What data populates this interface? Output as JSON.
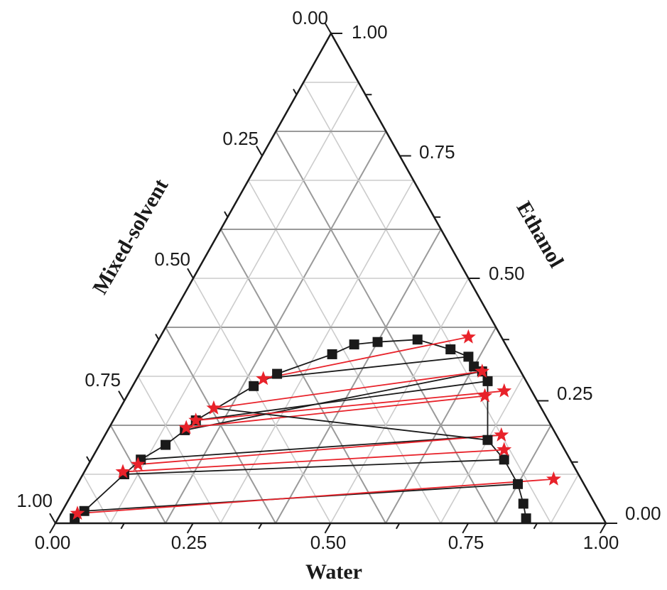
{
  "chart_data": {
    "type": "ternary",
    "axes": {
      "bottom": {
        "label": "Water",
        "ticks": [
          "0.00",
          "0.25",
          "0.50",
          "0.75",
          "1.00"
        ]
      },
      "right": {
        "label": "Ethanol",
        "ticks": [
          "0.00",
          "0.25",
          "0.50",
          "0.75",
          "1.00"
        ]
      },
      "left": {
        "label": "Mixed-solvent",
        "ticks": [
          "0.00",
          "0.25",
          "0.50",
          "0.75",
          "1.00"
        ]
      }
    },
    "range": [
      0,
      1
    ],
    "grid": true,
    "colors": {
      "binodal": "#1a1a1a",
      "feed_tie": "#e8222a",
      "frame": "#1a1a1a"
    },
    "series": [
      {
        "marker": "square",
        "points": [
          {
            "water": 0.03,
            "ethanol": 0.01
          },
          {
            "water": 0.04,
            "ethanol": 0.025
          },
          {
            "water": 0.075,
            "ethanol": 0.1
          },
          {
            "water": 0.09,
            "ethanol": 0.13
          },
          {
            "water": 0.12,
            "ethanol": 0.16
          },
          {
            "water": 0.14,
            "ethanol": 0.19
          },
          {
            "water": 0.15,
            "ethanol": 0.21
          },
          {
            "water": 0.22,
            "ethanol": 0.28
          },
          {
            "water": 0.25,
            "ethanol": 0.305
          },
          {
            "water": 0.33,
            "ethanol": 0.345
          },
          {
            "water": 0.36,
            "ethanol": 0.365
          },
          {
            "water": 0.4,
            "ethanol": 0.37
          },
          {
            "water": 0.47,
            "ethanol": 0.375
          },
          {
            "water": 0.54,
            "ethanol": 0.355
          },
          {
            "water": 0.58,
            "ethanol": 0.34
          },
          {
            "water": 0.6,
            "ethanol": 0.32
          },
          {
            "water": 0.62,
            "ethanol": 0.31
          },
          {
            "water": 0.64,
            "ethanol": 0.29
          },
          {
            "water": 0.7,
            "ethanol": 0.17
          },
          {
            "water": 0.75,
            "ethanol": 0.13
          },
          {
            "water": 0.8,
            "ethanol": 0.08
          },
          {
            "water": 0.83,
            "ethanol": 0.04
          },
          {
            "water": 0.85,
            "ethanol": 0.01
          }
        ]
      },
      {
        "marker": "star",
        "points": [
          {
            "water": 0.03,
            "ethanol": 0.02
          },
          {
            "water": 0.07,
            "ethanol": 0.105
          },
          {
            "water": 0.09,
            "ethanol": 0.12
          },
          {
            "water": 0.14,
            "ethanol": 0.195
          },
          {
            "water": 0.15,
            "ethanol": 0.21
          },
          {
            "water": 0.17,
            "ethanol": 0.235
          },
          {
            "water": 0.23,
            "ethanol": 0.295
          },
          {
            "water": 0.56,
            "ethanol": 0.38
          },
          {
            "water": 0.62,
            "ethanol": 0.31
          },
          {
            "water": 0.65,
            "ethanol": 0.26
          },
          {
            "water": 0.68,
            "ethanol": 0.27
          },
          {
            "water": 0.72,
            "ethanol": 0.18
          },
          {
            "water": 0.74,
            "ethanol": 0.15
          },
          {
            "water": 0.86,
            "ethanol": 0.09
          }
        ]
      }
    ],
    "tie_lines": [
      {
        "color": "#1a1a1a",
        "from": {
          "water": 0.04,
          "ethanol": 0.025
        },
        "to": {
          "water": 0.8,
          "ethanol": 0.08
        }
      },
      {
        "color": "#e8222a",
        "from": {
          "water": 0.03,
          "ethanol": 0.02
        },
        "to": {
          "water": 0.86,
          "ethanol": 0.09
        }
      },
      {
        "color": "#1a1a1a",
        "from": {
          "water": 0.075,
          "ethanol": 0.1
        },
        "to": {
          "water": 0.75,
          "ethanol": 0.13
        }
      },
      {
        "color": "#e8222a",
        "from": {
          "water": 0.07,
          "ethanol": 0.105
        },
        "to": {
          "water": 0.74,
          "ethanol": 0.15
        }
      },
      {
        "color": "#1a1a1a",
        "from": {
          "water": 0.09,
          "ethanol": 0.13
        },
        "to": {
          "water": 0.72,
          "ethanol": 0.18
        }
      },
      {
        "color": "#e8222a",
        "from": {
          "water": 0.09,
          "ethanol": 0.12
        },
        "to": {
          "water": 0.72,
          "ethanol": 0.18
        }
      },
      {
        "color": "#1a1a1a",
        "from": {
          "water": 0.14,
          "ethanol": 0.19
        },
        "to": {
          "water": 0.62,
          "ethanol": 0.31
        }
      },
      {
        "color": "#e8222a",
        "from": {
          "water": 0.14,
          "ethanol": 0.195
        },
        "to": {
          "water": 0.65,
          "ethanol": 0.26
        }
      },
      {
        "color": "#1a1a1a",
        "from": {
          "water": 0.15,
          "ethanol": 0.21
        },
        "to": {
          "water": 0.64,
          "ethanol": 0.29
        }
      },
      {
        "color": "#e8222a",
        "from": {
          "water": 0.15,
          "ethanol": 0.21
        },
        "to": {
          "water": 0.68,
          "ethanol": 0.27
        }
      },
      {
        "color": "#1a1a1a",
        "from": {
          "water": 0.17,
          "ethanol": 0.235
        },
        "to": {
          "water": 0.7,
          "ethanol": 0.17
        }
      },
      {
        "color": "#e8222a",
        "from": {
          "water": 0.17,
          "ethanol": 0.235
        },
        "to": {
          "water": 0.62,
          "ethanol": 0.31
        }
      },
      {
        "color": "#1a1a1a",
        "from": {
          "water": 0.23,
          "ethanol": 0.295
        },
        "to": {
          "water": 0.58,
          "ethanol": 0.34
        }
      },
      {
        "color": "#e8222a",
        "from": {
          "water": 0.23,
          "ethanol": 0.295
        },
        "to": {
          "water": 0.56,
          "ethanol": 0.38
        }
      }
    ]
  }
}
